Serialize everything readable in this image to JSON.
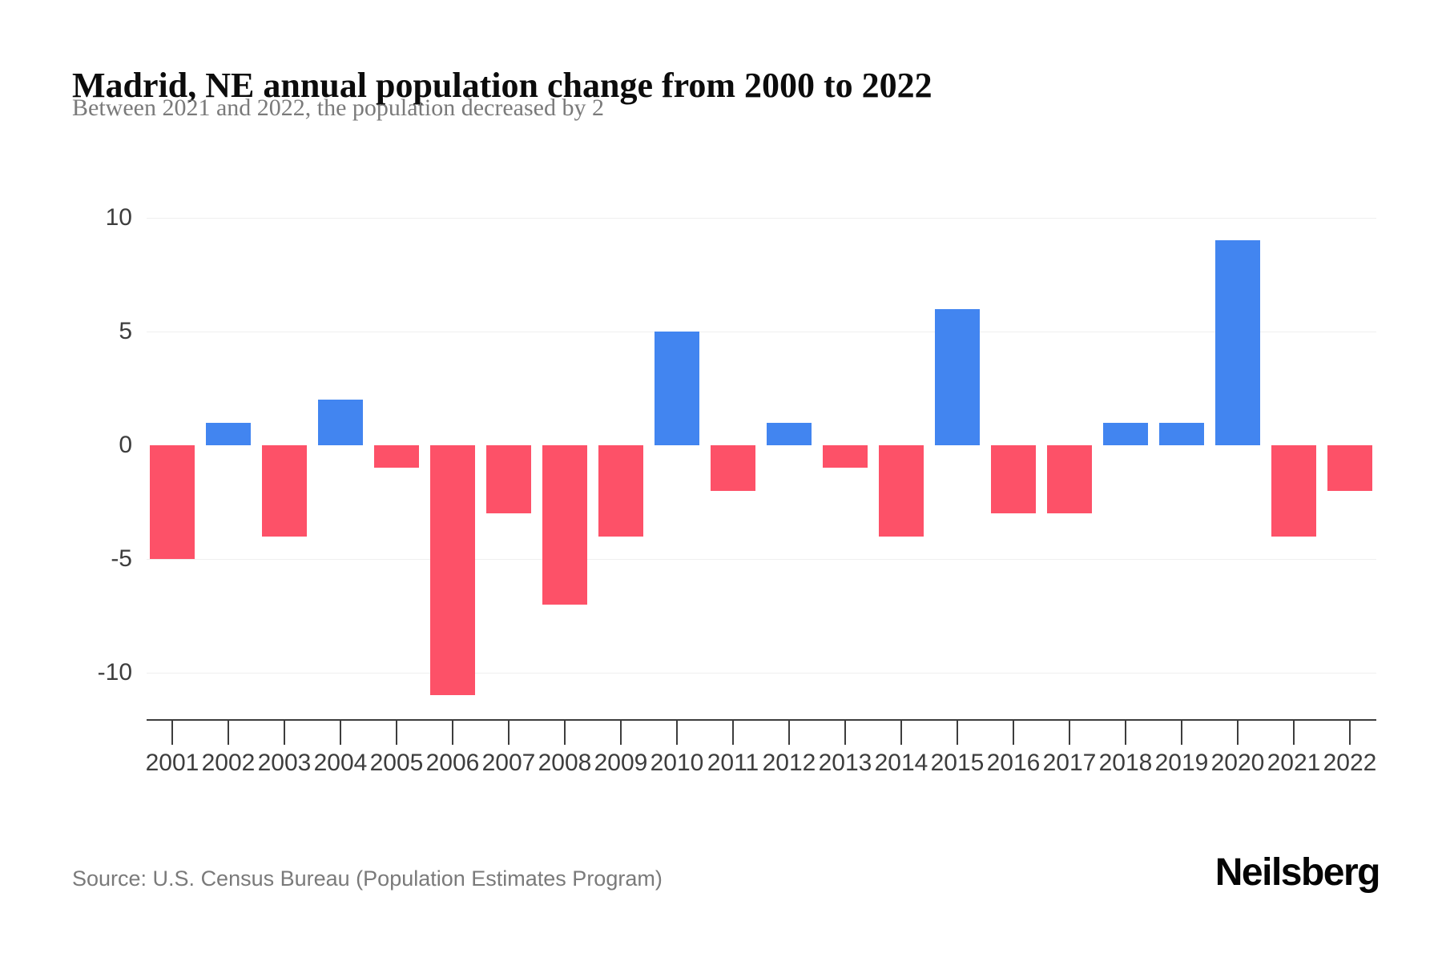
{
  "header": {
    "title": "Madrid, NE annual population change from 2000 to 2022",
    "subtitle": "Between 2021 and 2022, the population decreased by 2"
  },
  "chart_data": {
    "type": "bar",
    "title": "Madrid, NE annual population change from 2000 to 2022",
    "subtitle": "Between 2021 and 2022, the population decreased by 2",
    "categories": [
      "2001",
      "2002",
      "2003",
      "2004",
      "2005",
      "2006",
      "2007",
      "2008",
      "2009",
      "2010",
      "2011",
      "2012",
      "2013",
      "2014",
      "2015",
      "2016",
      "2017",
      "2018",
      "2019",
      "2020",
      "2021",
      "2022"
    ],
    "values": [
      -5,
      1,
      -4,
      2,
      -1,
      -11,
      -3,
      -7,
      -4,
      5,
      -2,
      1,
      -1,
      -4,
      6,
      -3,
      -3,
      1,
      1,
      9,
      -4,
      -2
    ],
    "xlabel": "",
    "ylabel": "",
    "yticks": [
      10,
      5,
      0,
      -5,
      -10
    ],
    "ylim": [
      -12.1,
      11.5
    ],
    "grid": true,
    "legend": null,
    "positive_color": "#4285F0",
    "negative_color": "#FD5168",
    "gridline_color": "#efefef",
    "axis_color": "#3d3d3d",
    "tick_label_color": "#3d3d3d"
  },
  "footer": {
    "source": "Source: U.S. Census Bureau (Population Estimates Program)",
    "brand": "Neilsberg"
  }
}
